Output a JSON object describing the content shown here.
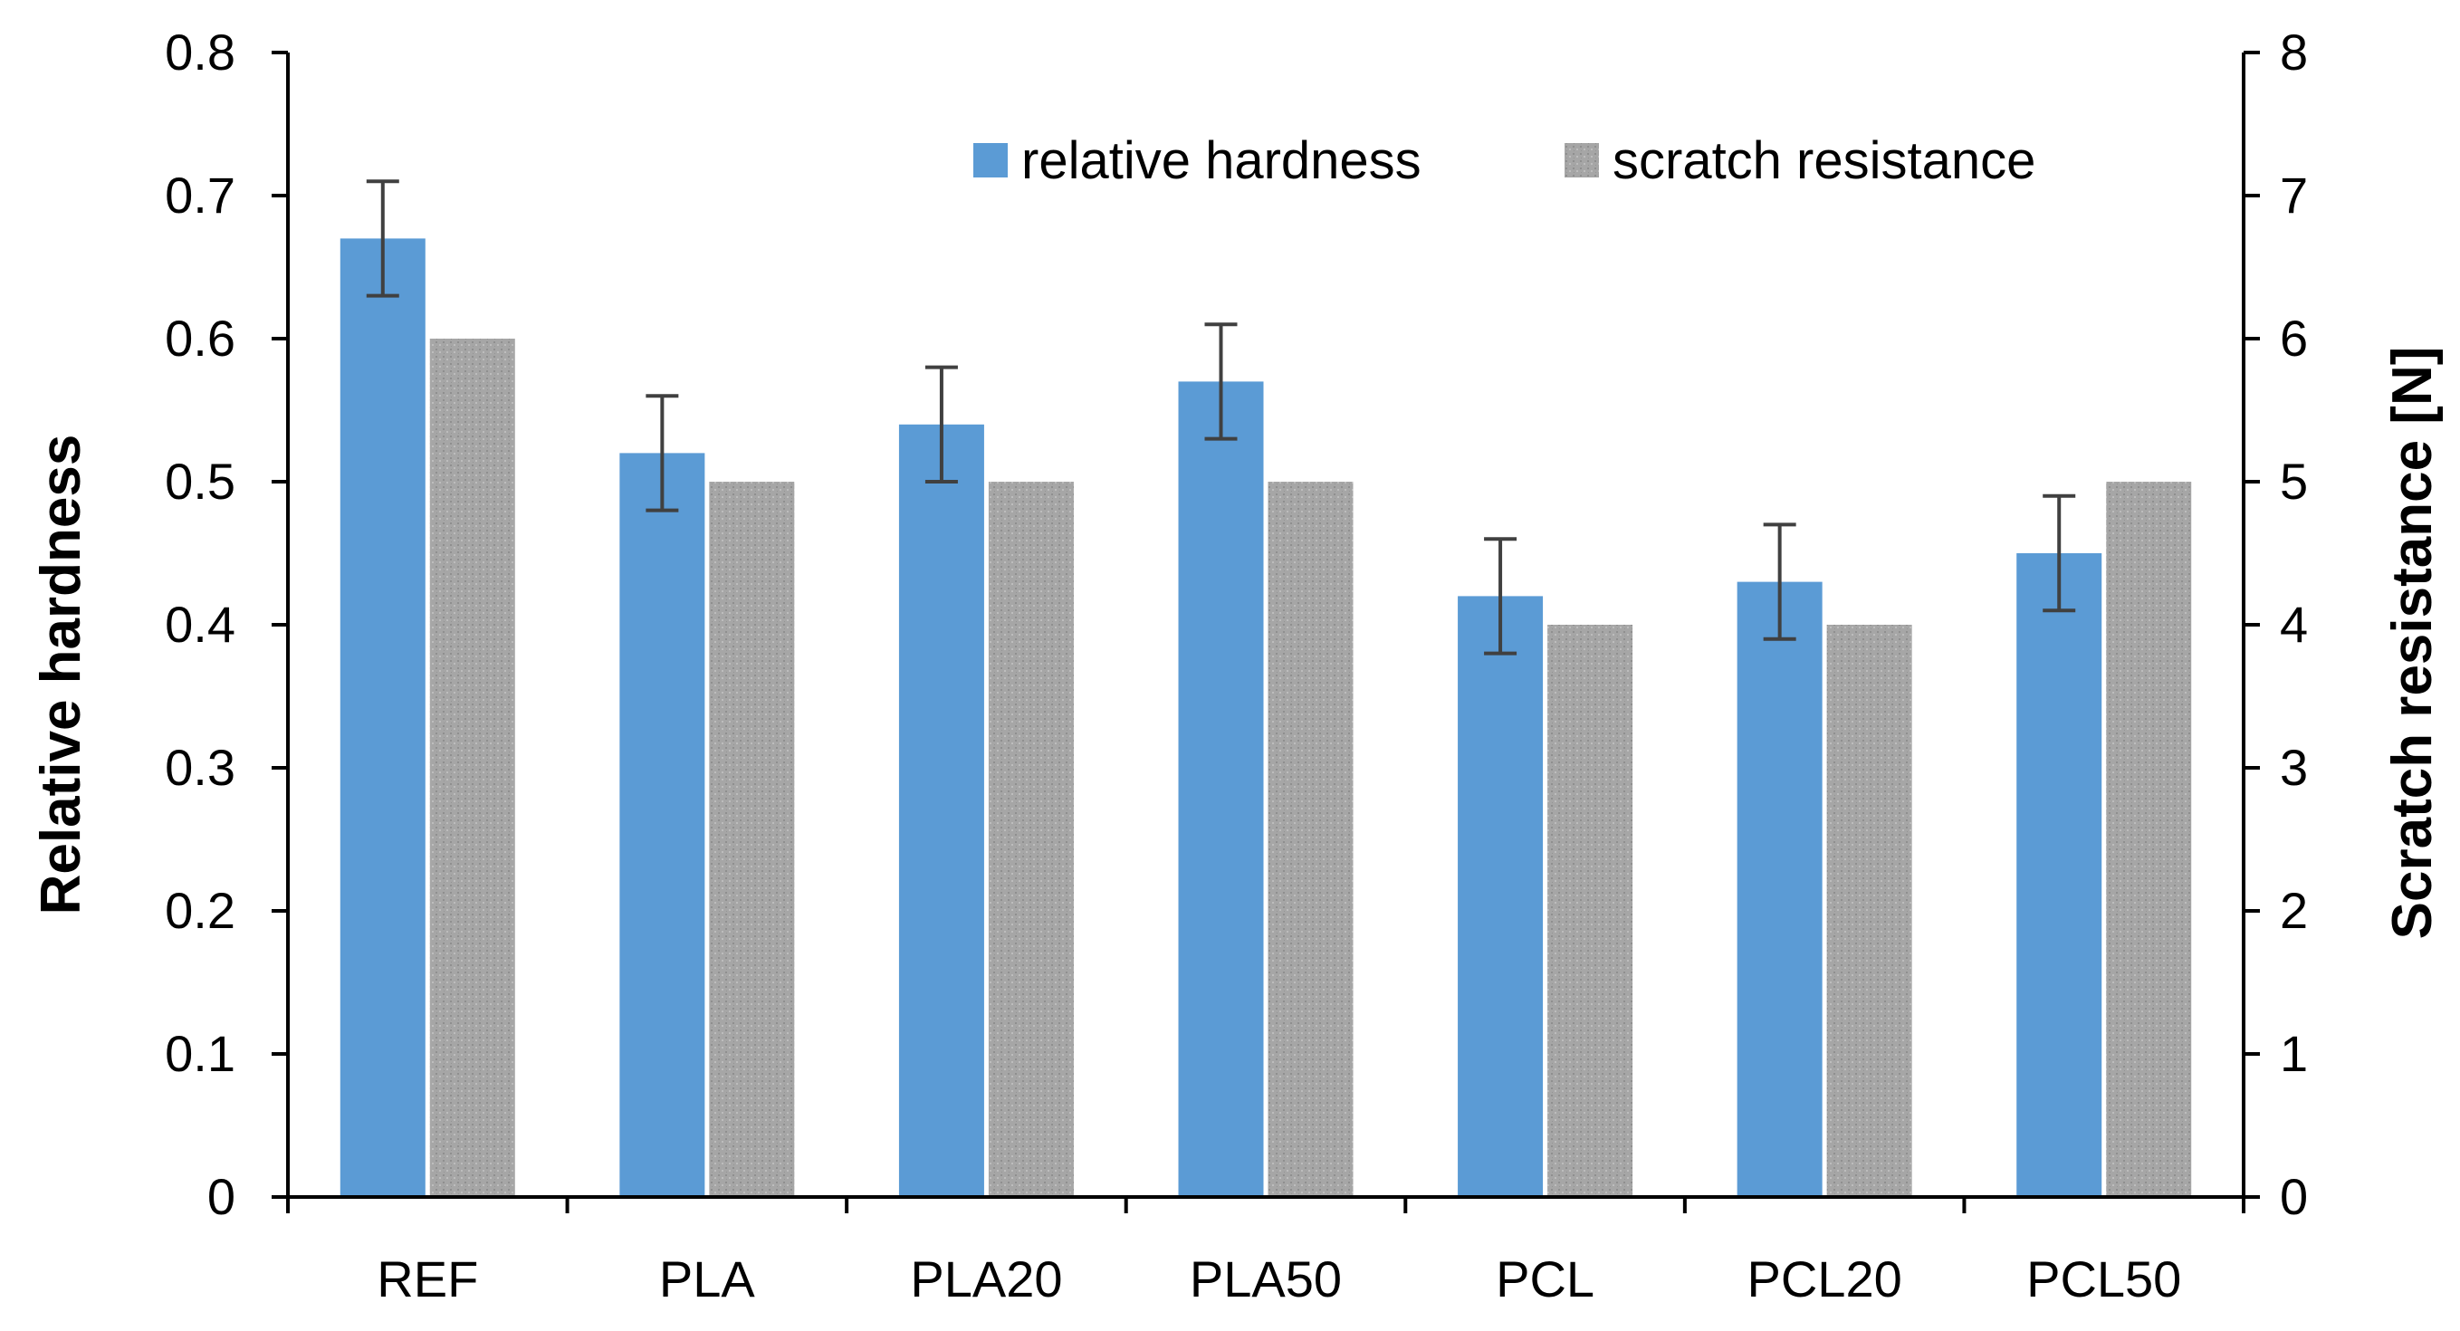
{
  "chart_data": {
    "type": "bar",
    "title": "",
    "categories": [
      "REF",
      "PLA",
      "PLA20",
      "PLA50",
      "PCL",
      "PCL20",
      "PCL50"
    ],
    "series": [
      {
        "name": "relative hardness",
        "axis": "left",
        "color": "#5B9BD5",
        "values": [
          0.67,
          0.52,
          0.54,
          0.57,
          0.42,
          0.43,
          0.45
        ],
        "error": [
          0.04,
          0.04,
          0.04,
          0.04,
          0.04,
          0.04,
          0.04
        ]
      },
      {
        "name": "scratch resistance",
        "axis": "right",
        "color": "#A6A6A6",
        "pattern": "stippled",
        "values": [
          6,
          5,
          5,
          5,
          4,
          4,
          5
        ]
      }
    ],
    "ylabel": "Relative hardness",
    "ylabel_right": "Scratch resistance [N]",
    "ylim": [
      0,
      0.8
    ],
    "ylim_right": [
      0,
      8
    ],
    "yticks": [
      "0",
      "0.1",
      "0.2",
      "0.3",
      "0.4",
      "0.5",
      "0.6",
      "0.7",
      "0.8"
    ],
    "yticks_right": [
      "0",
      "1",
      "2",
      "3",
      "4",
      "5",
      "6",
      "7",
      "8"
    ],
    "grid": false,
    "legend_position": "top-right",
    "error_bar_color": "#404040"
  }
}
